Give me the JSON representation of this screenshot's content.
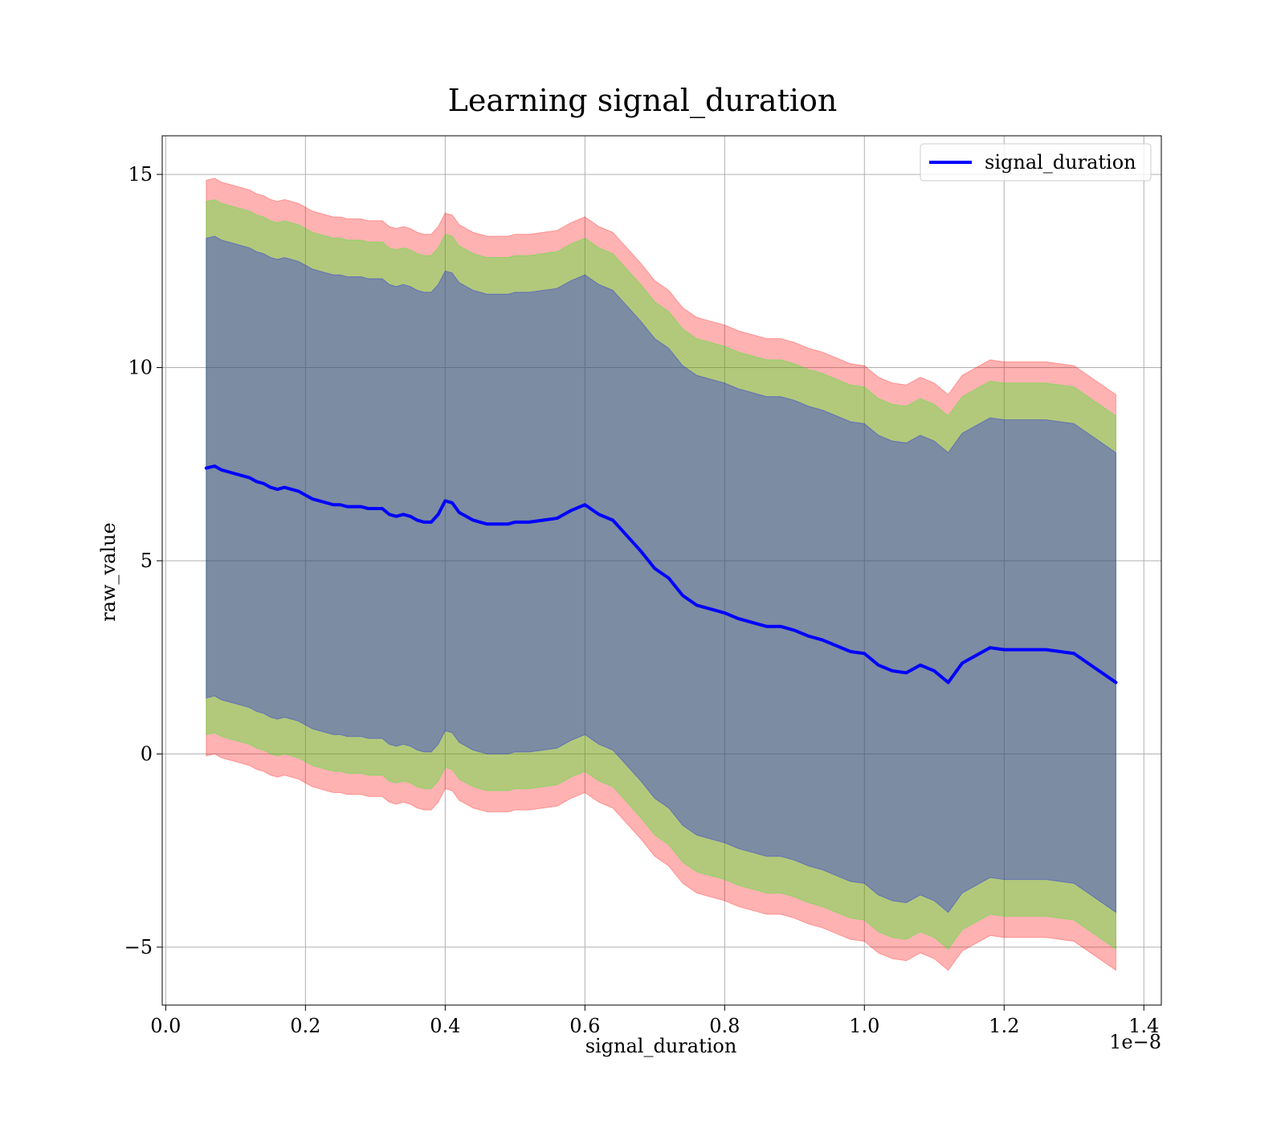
{
  "chart_data": {
    "type": "line",
    "title": "Learning signal_duration",
    "xlabel": "signal_duration",
    "ylabel": "raw_value",
    "x_offset_label": "1e−8",
    "xlim": [
      -0.005,
      1.425
    ],
    "ylim": [
      -6.5,
      16.0
    ],
    "x_ticks": [
      0.0,
      0.2,
      0.4,
      0.6,
      0.8,
      1.0,
      1.2,
      1.4
    ],
    "x_tick_labels": [
      "0.0",
      "0.2",
      "0.4",
      "0.6",
      "0.8",
      "1.0",
      "1.2",
      "1.4"
    ],
    "y_ticks": [
      -5,
      0,
      5,
      10,
      15
    ],
    "y_tick_labels": [
      "−5",
      "0",
      "5",
      "10",
      "15"
    ],
    "grid": true,
    "legend_position": "top-right",
    "series": [
      {
        "name": "signal_duration",
        "color": "#0000ff",
        "x": [
          0.058,
          0.07,
          0.08,
          0.09,
          0.1,
          0.11,
          0.12,
          0.13,
          0.14,
          0.15,
          0.16,
          0.17,
          0.18,
          0.19,
          0.2,
          0.21,
          0.22,
          0.23,
          0.24,
          0.25,
          0.26,
          0.27,
          0.28,
          0.29,
          0.3,
          0.31,
          0.32,
          0.33,
          0.34,
          0.35,
          0.36,
          0.37,
          0.38,
          0.39,
          0.4,
          0.41,
          0.42,
          0.43,
          0.44,
          0.45,
          0.46,
          0.47,
          0.48,
          0.49,
          0.5,
          0.52,
          0.54,
          0.56,
          0.58,
          0.6,
          0.62,
          0.64,
          0.66,
          0.68,
          0.7,
          0.72,
          0.74,
          0.76,
          0.78,
          0.8,
          0.82,
          0.84,
          0.86,
          0.88,
          0.9,
          0.92,
          0.94,
          0.96,
          0.98,
          1.0,
          1.02,
          1.04,
          1.06,
          1.08,
          1.1,
          1.12,
          1.14,
          1.18,
          1.2,
          1.26,
          1.3,
          1.36
        ],
        "values": [
          7.4,
          7.45,
          7.35,
          7.3,
          7.25,
          7.2,
          7.15,
          7.05,
          7.0,
          6.9,
          6.85,
          6.9,
          6.85,
          6.8,
          6.7,
          6.6,
          6.55,
          6.5,
          6.45,
          6.45,
          6.4,
          6.4,
          6.4,
          6.35,
          6.35,
          6.35,
          6.2,
          6.15,
          6.2,
          6.15,
          6.05,
          6.0,
          6.0,
          6.2,
          6.55,
          6.5,
          6.25,
          6.15,
          6.05,
          6.0,
          5.95,
          5.95,
          5.95,
          5.95,
          6.0,
          6.0,
          6.05,
          6.1,
          6.3,
          6.45,
          6.2,
          6.05,
          5.65,
          5.25,
          4.8,
          4.55,
          4.1,
          3.85,
          3.75,
          3.65,
          3.5,
          3.4,
          3.3,
          3.3,
          3.2,
          3.05,
          2.95,
          2.8,
          2.65,
          2.6,
          2.3,
          2.15,
          2.1,
          2.3,
          2.15,
          1.85,
          2.35,
          2.75,
          2.7,
          2.7,
          2.6,
          1.85
        ],
        "bands": [
          {
            "color": "#ff0000",
            "opacity": 0.3,
            "half_width": [
              7.45,
              7.45,
              7.45,
              7.45,
              7.45,
              7.45,
              7.45,
              7.45,
              7.45,
              7.45,
              7.45,
              7.45,
              7.45,
              7.45,
              7.45,
              7.45,
              7.45,
              7.45,
              7.45,
              7.45,
              7.45,
              7.45,
              7.45,
              7.45,
              7.45,
              7.45,
              7.45,
              7.45,
              7.45,
              7.45,
              7.45,
              7.45,
              7.45,
              7.45,
              7.45,
              7.45,
              7.45,
              7.45,
              7.45,
              7.45,
              7.45,
              7.45,
              7.45,
              7.45,
              7.45,
              7.45,
              7.45,
              7.45,
              7.45,
              7.45,
              7.45,
              7.45,
              7.45,
              7.45,
              7.45,
              7.45,
              7.45,
              7.45,
              7.45,
              7.45,
              7.45,
              7.45,
              7.45,
              7.45,
              7.45,
              7.45,
              7.45,
              7.45,
              7.45,
              7.45,
              7.45,
              7.45,
              7.45,
              7.45,
              7.45,
              7.45,
              7.45,
              7.45,
              7.45,
              7.45,
              7.45,
              7.45
            ]
          },
          {
            "color": "#00ff00",
            "opacity": 0.3,
            "half_width": [
              6.9,
              6.9,
              6.9,
              6.9,
              6.9,
              6.9,
              6.9,
              6.9,
              6.9,
              6.9,
              6.9,
              6.9,
              6.9,
              6.9,
              6.9,
              6.9,
              6.9,
              6.9,
              6.9,
              6.9,
              6.9,
              6.9,
              6.9,
              6.9,
              6.9,
              6.9,
              6.9,
              6.9,
              6.9,
              6.9,
              6.9,
              6.9,
              6.9,
              6.9,
              6.9,
              6.9,
              6.9,
              6.9,
              6.9,
              6.9,
              6.9,
              6.9,
              6.9,
              6.9,
              6.9,
              6.9,
              6.9,
              6.9,
              6.9,
              6.9,
              6.9,
              6.9,
              6.9,
              6.9,
              6.9,
              6.9,
              6.9,
              6.9,
              6.9,
              6.9,
              6.9,
              6.9,
              6.9,
              6.9,
              6.9,
              6.9,
              6.9,
              6.9,
              6.9,
              6.9,
              6.9,
              6.9,
              6.9,
              6.9,
              6.9,
              6.9,
              6.9,
              6.9,
              6.9,
              6.9,
              6.9,
              6.9
            ]
          },
          {
            "color": "#0000ff",
            "opacity": 0.3,
            "half_width": [
              5.95,
              5.95,
              5.95,
              5.95,
              5.95,
              5.95,
              5.95,
              5.95,
              5.95,
              5.95,
              5.95,
              5.95,
              5.95,
              5.95,
              5.95,
              5.95,
              5.95,
              5.95,
              5.95,
              5.95,
              5.95,
              5.95,
              5.95,
              5.95,
              5.95,
              5.95,
              5.95,
              5.95,
              5.95,
              5.95,
              5.95,
              5.95,
              5.95,
              5.95,
              5.95,
              5.95,
              5.95,
              5.95,
              5.95,
              5.95,
              5.95,
              5.95,
              5.95,
              5.95,
              5.95,
              5.95,
              5.95,
              5.95,
              5.95,
              5.95,
              5.95,
              5.95,
              5.95,
              5.95,
              5.95,
              5.95,
              5.95,
              5.95,
              5.95,
              5.95,
              5.95,
              5.95,
              5.95,
              5.95,
              5.95,
              5.95,
              5.95,
              5.95,
              5.95,
              5.95,
              5.95,
              5.95,
              5.95,
              5.95,
              5.95,
              5.95,
              5.95,
              5.95,
              5.95,
              5.95,
              5.95,
              5.95
            ]
          }
        ]
      }
    ]
  }
}
